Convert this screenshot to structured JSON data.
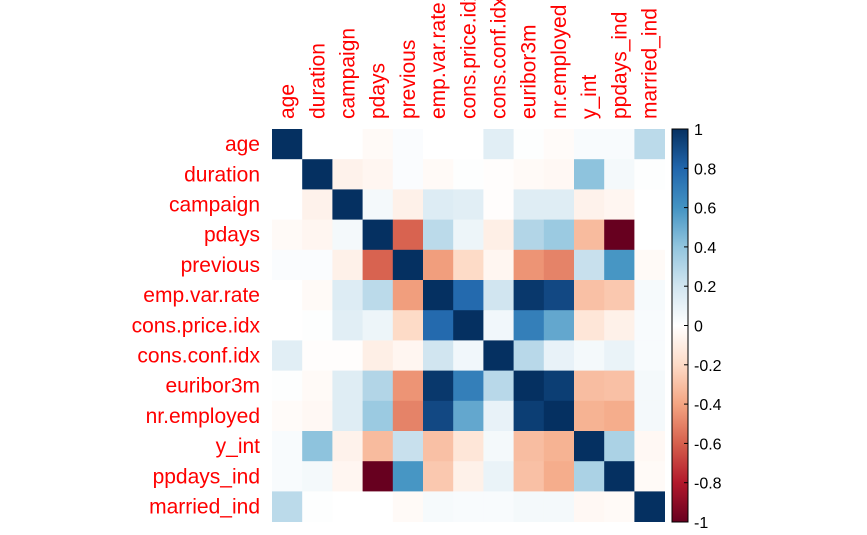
{
  "chart_data": {
    "type": "heatmap",
    "title": "",
    "variables": [
      "age",
      "duration",
      "campaign",
      "pdays",
      "previous",
      "emp.var.rate",
      "cons.price.idx",
      "cons.conf.idx",
      "euribor3m",
      "nr.employed",
      "y_int",
      "ppdays_ind",
      "married_ind"
    ],
    "col_labels": [
      "age",
      "duration",
      "campaign",
      "pdays",
      "previous",
      "emp.var.rate",
      "cons.price.idx",
      "cons.conf.idx",
      "euribor3m",
      "nr.employed",
      "y_int",
      "ppdays_ind",
      "married_ind"
    ],
    "matrix": [
      [
        1.0,
        0.0,
        0.0,
        -0.03,
        0.02,
        0.0,
        0.0,
        0.13,
        0.01,
        -0.02,
        0.03,
        0.03,
        0.27
      ],
      [
        0.0,
        1.0,
        -0.07,
        -0.05,
        0.02,
        -0.03,
        0.01,
        -0.01,
        -0.03,
        -0.04,
        0.41,
        0.05,
        0.01
      ],
      [
        0.0,
        -0.07,
        1.0,
        0.05,
        -0.08,
        0.15,
        0.13,
        -0.01,
        0.14,
        0.14,
        -0.07,
        -0.05,
        0.0
      ],
      [
        -0.03,
        -0.05,
        0.05,
        1.0,
        -0.59,
        0.27,
        0.08,
        -0.09,
        0.3,
        0.37,
        -0.32,
        -1.0,
        0.0
      ],
      [
        0.02,
        0.02,
        -0.08,
        -0.59,
        1.0,
        -0.42,
        -0.2,
        -0.05,
        -0.45,
        -0.5,
        0.23,
        0.59,
        -0.03
      ],
      [
        0.0,
        -0.03,
        0.15,
        0.27,
        -0.42,
        1.0,
        0.78,
        0.2,
        0.97,
        0.91,
        -0.3,
        -0.27,
        0.04
      ],
      [
        0.0,
        0.01,
        0.13,
        0.08,
        -0.2,
        0.78,
        1.0,
        0.06,
        0.69,
        0.52,
        -0.14,
        -0.08,
        0.03
      ],
      [
        0.13,
        -0.01,
        -0.01,
        -0.09,
        -0.05,
        0.2,
        0.06,
        1.0,
        0.28,
        0.1,
        0.05,
        0.09,
        0.03
      ],
      [
        0.01,
        -0.03,
        0.14,
        0.3,
        -0.45,
        0.97,
        0.69,
        0.28,
        1.0,
        0.95,
        -0.31,
        -0.3,
        0.05
      ],
      [
        -0.02,
        -0.04,
        0.14,
        0.37,
        -0.5,
        0.91,
        0.52,
        0.1,
        0.95,
        1.0,
        -0.35,
        -0.37,
        0.05
      ],
      [
        0.03,
        0.41,
        -0.07,
        -0.32,
        0.23,
        -0.3,
        -0.14,
        0.05,
        -0.31,
        -0.35,
        1.0,
        0.32,
        -0.04
      ],
      [
        0.03,
        0.05,
        -0.05,
        -1.0,
        0.59,
        -0.27,
        -0.08,
        0.09,
        -0.3,
        -0.37,
        0.32,
        1.0,
        -0.03
      ],
      [
        0.27,
        0.01,
        0.0,
        0.0,
        -0.03,
        0.04,
        0.03,
        0.03,
        0.05,
        0.05,
        -0.04,
        -0.03,
        1.0
      ]
    ],
    "colorbar": {
      "range": [
        -1,
        1
      ],
      "ticks": [
        "-1",
        "-0.8",
        "-0.6",
        "-0.4",
        "-0.2",
        "0",
        "0.2",
        "0.4",
        "0.6",
        "0.8",
        "1"
      ]
    },
    "colors": {
      "label": "#ff0000",
      "scale": [
        "#67001f",
        "#b2182b",
        "#d6604d",
        "#f4a582",
        "#fddbc7",
        "#ffffff",
        "#d1e5f0",
        "#92c5de",
        "#4393c3",
        "#2166ac",
        "#053061"
      ]
    }
  }
}
